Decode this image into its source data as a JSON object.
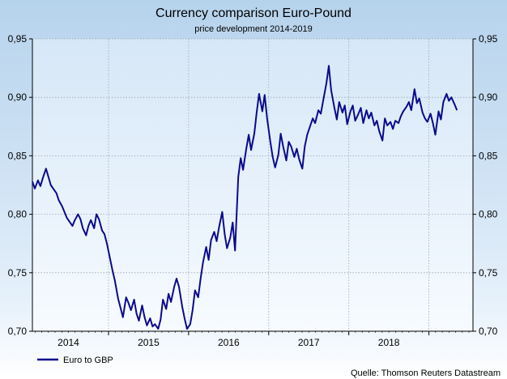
{
  "chart_data": {
    "type": "line",
    "title": "Currency comparison Euro-Pound",
    "subtitle": "price development 2014-2019",
    "source": "Quelle: Thomson Reuters Datastream",
    "ylim": [
      0.7,
      0.95
    ],
    "xlim": [
      2013.55,
      2019.05
    ],
    "y_ticks": [
      "0,70",
      "0,75",
      "0,80",
      "0,85",
      "0,90",
      "0,95"
    ],
    "y_tick_values": [
      0.7,
      0.75,
      0.8,
      0.85,
      0.9,
      0.95
    ],
    "x_tick_labels": [
      "2014",
      "2015",
      "2016",
      "2017",
      "2018"
    ],
    "x_tick_values": [
      2014,
      2015,
      2016,
      2017,
      2018
    ],
    "x_year_boundaries": [
      2014.5,
      2015.5,
      2016.5,
      2017.5,
      2018.5
    ],
    "grid": true,
    "legend_position": "bottom-left",
    "series": [
      {
        "name": "Euro to GBP",
        "color": "#0a0a8c",
        "points": [
          [
            2013.55,
            0.828
          ],
          [
            2013.58,
            0.822
          ],
          [
            2013.62,
            0.829
          ],
          [
            2013.65,
            0.824
          ],
          [
            2013.68,
            0.831
          ],
          [
            2013.72,
            0.839
          ],
          [
            2013.75,
            0.832
          ],
          [
            2013.78,
            0.825
          ],
          [
            2013.82,
            0.821
          ],
          [
            2013.85,
            0.818
          ],
          [
            2013.88,
            0.812
          ],
          [
            2013.92,
            0.807
          ],
          [
            2013.95,
            0.802
          ],
          [
            2013.98,
            0.797
          ],
          [
            2014.02,
            0.793
          ],
          [
            2014.05,
            0.79
          ],
          [
            2014.08,
            0.795
          ],
          [
            2014.12,
            0.8
          ],
          [
            2014.15,
            0.796
          ],
          [
            2014.18,
            0.788
          ],
          [
            2014.22,
            0.782
          ],
          [
            2014.25,
            0.79
          ],
          [
            2014.28,
            0.795
          ],
          [
            2014.32,
            0.788
          ],
          [
            2014.35,
            0.8
          ],
          [
            2014.38,
            0.796
          ],
          [
            2014.42,
            0.786
          ],
          [
            2014.45,
            0.783
          ],
          [
            2014.48,
            0.775
          ],
          [
            2014.52,
            0.762
          ],
          [
            2014.55,
            0.752
          ],
          [
            2014.58,
            0.743
          ],
          [
            2014.62,
            0.728
          ],
          [
            2014.65,
            0.72
          ],
          [
            2014.68,
            0.712
          ],
          [
            2014.72,
            0.729
          ],
          [
            2014.75,
            0.724
          ],
          [
            2014.78,
            0.718
          ],
          [
            2014.82,
            0.727
          ],
          [
            2014.85,
            0.715
          ],
          [
            2014.88,
            0.709
          ],
          [
            2014.92,
            0.722
          ],
          [
            2014.95,
            0.712
          ],
          [
            2014.98,
            0.705
          ],
          [
            2015.02,
            0.711
          ],
          [
            2015.05,
            0.704
          ],
          [
            2015.08,
            0.706
          ],
          [
            2015.12,
            0.702
          ],
          [
            2015.15,
            0.71
          ],
          [
            2015.18,
            0.727
          ],
          [
            2015.22,
            0.719
          ],
          [
            2015.25,
            0.732
          ],
          [
            2015.28,
            0.725
          ],
          [
            2015.32,
            0.738
          ],
          [
            2015.35,
            0.745
          ],
          [
            2015.38,
            0.738
          ],
          [
            2015.42,
            0.721
          ],
          [
            2015.45,
            0.711
          ],
          [
            2015.48,
            0.702
          ],
          [
            2015.52,
            0.706
          ],
          [
            2015.55,
            0.718
          ],
          [
            2015.58,
            0.735
          ],
          [
            2015.62,
            0.729
          ],
          [
            2015.65,
            0.745
          ],
          [
            2015.68,
            0.759
          ],
          [
            2015.72,
            0.772
          ],
          [
            2015.75,
            0.761
          ],
          [
            2015.78,
            0.778
          ],
          [
            2015.82,
            0.785
          ],
          [
            2015.85,
            0.777
          ],
          [
            2015.88,
            0.789
          ],
          [
            2015.92,
            0.802
          ],
          [
            2015.95,
            0.783
          ],
          [
            2015.98,
            0.771
          ],
          [
            2016.02,
            0.78
          ],
          [
            2016.05,
            0.793
          ],
          [
            2016.08,
            0.769
          ],
          [
            2016.12,
            0.832
          ],
          [
            2016.15,
            0.848
          ],
          [
            2016.18,
            0.838
          ],
          [
            2016.22,
            0.856
          ],
          [
            2016.25,
            0.868
          ],
          [
            2016.28,
            0.855
          ],
          [
            2016.32,
            0.869
          ],
          [
            2016.35,
            0.887
          ],
          [
            2016.38,
            0.903
          ],
          [
            2016.42,
            0.888
          ],
          [
            2016.45,
            0.902
          ],
          [
            2016.48,
            0.882
          ],
          [
            2016.52,
            0.862
          ],
          [
            2016.55,
            0.849
          ],
          [
            2016.58,
            0.84
          ],
          [
            2016.62,
            0.851
          ],
          [
            2016.65,
            0.869
          ],
          [
            2016.68,
            0.858
          ],
          [
            2016.72,
            0.846
          ],
          [
            2016.75,
            0.862
          ],
          [
            2016.78,
            0.858
          ],
          [
            2016.82,
            0.849
          ],
          [
            2016.85,
            0.856
          ],
          [
            2016.88,
            0.847
          ],
          [
            2016.92,
            0.839
          ],
          [
            2016.95,
            0.858
          ],
          [
            2016.98,
            0.868
          ],
          [
            2017.02,
            0.876
          ],
          [
            2017.05,
            0.882
          ],
          [
            2017.08,
            0.878
          ],
          [
            2017.12,
            0.889
          ],
          [
            2017.15,
            0.886
          ],
          [
            2017.18,
            0.897
          ],
          [
            2017.22,
            0.912
          ],
          [
            2017.25,
            0.927
          ],
          [
            2017.28,
            0.906
          ],
          [
            2017.32,
            0.891
          ],
          [
            2017.35,
            0.881
          ],
          [
            2017.38,
            0.896
          ],
          [
            2017.42,
            0.887
          ],
          [
            2017.45,
            0.893
          ],
          [
            2017.48,
            0.877
          ],
          [
            2017.52,
            0.888
          ],
          [
            2017.55,
            0.893
          ],
          [
            2017.58,
            0.88
          ],
          [
            2017.62,
            0.886
          ],
          [
            2017.65,
            0.891
          ],
          [
            2017.68,
            0.878
          ],
          [
            2017.72,
            0.889
          ],
          [
            2017.75,
            0.882
          ],
          [
            2017.78,
            0.887
          ],
          [
            2017.82,
            0.876
          ],
          [
            2017.85,
            0.88
          ],
          [
            2017.88,
            0.871
          ],
          [
            2017.92,
            0.863
          ],
          [
            2017.95,
            0.882
          ],
          [
            2017.98,
            0.876
          ],
          [
            2018.02,
            0.879
          ],
          [
            2018.05,
            0.873
          ],
          [
            2018.08,
            0.88
          ],
          [
            2018.12,
            0.878
          ],
          [
            2018.15,
            0.884
          ],
          [
            2018.18,
            0.888
          ],
          [
            2018.22,
            0.892
          ],
          [
            2018.25,
            0.896
          ],
          [
            2018.28,
            0.889
          ],
          [
            2018.32,
            0.907
          ],
          [
            2018.35,
            0.895
          ],
          [
            2018.38,
            0.899
          ],
          [
            2018.42,
            0.887
          ],
          [
            2018.45,
            0.882
          ],
          [
            2018.48,
            0.879
          ],
          [
            2018.52,
            0.886
          ],
          [
            2018.55,
            0.878
          ],
          [
            2018.58,
            0.868
          ],
          [
            2018.62,
            0.888
          ],
          [
            2018.65,
            0.881
          ],
          [
            2018.68,
            0.896
          ],
          [
            2018.72,
            0.903
          ],
          [
            2018.75,
            0.897
          ],
          [
            2018.78,
            0.9
          ],
          [
            2018.82,
            0.894
          ],
          [
            2018.85,
            0.889
          ]
        ]
      }
    ]
  }
}
